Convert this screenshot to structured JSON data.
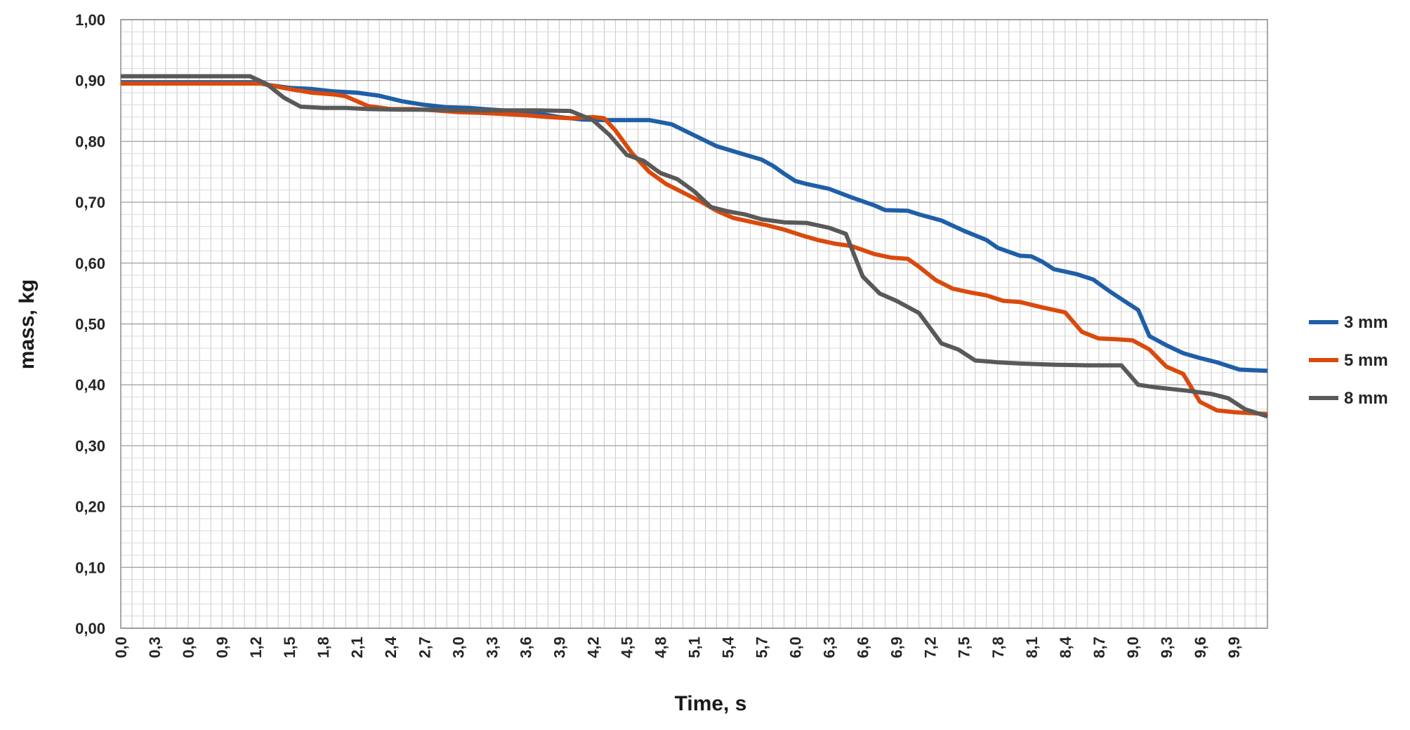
{
  "chart_data": {
    "type": "line",
    "title": "",
    "xlabel": "Time, s",
    "ylabel": "mass, kg",
    "xlim": [
      0,
      10.2
    ],
    "ylim": [
      0,
      1.0
    ],
    "grid": true,
    "legend_position": "right",
    "x_tick_labels": [
      "0,0",
      "0,3",
      "0,6",
      "0,9",
      "1,2",
      "1,5",
      "1,8",
      "2,1",
      "2,4",
      "2,7",
      "3,0",
      "3,3",
      "3,6",
      "3,9",
      "4,2",
      "4,5",
      "4,8",
      "5,1",
      "5,4",
      "5,7",
      "6,0",
      "6,3",
      "6,6",
      "6,9",
      "7,2",
      "7,5",
      "7,8",
      "8,1",
      "8,4",
      "8,7",
      "9,0",
      "9,3",
      "9,6",
      "9,9"
    ],
    "y_tick_labels": [
      "0,00",
      "0,10",
      "0,20",
      "0,30",
      "0,40",
      "0,50",
      "0,60",
      "0,70",
      "0,80",
      "0,90",
      "1,00"
    ],
    "series": [
      {
        "name": "3 mm",
        "color": "#1f5fa8",
        "points": [
          [
            0.0,
            0.897
          ],
          [
            1.2,
            0.897
          ],
          [
            1.3,
            0.893
          ],
          [
            1.5,
            0.888
          ],
          [
            1.7,
            0.886
          ],
          [
            1.9,
            0.882
          ],
          [
            2.1,
            0.88
          ],
          [
            2.3,
            0.875
          ],
          [
            2.5,
            0.866
          ],
          [
            2.7,
            0.86
          ],
          [
            2.9,
            0.856
          ],
          [
            3.1,
            0.855
          ],
          [
            3.3,
            0.852
          ],
          [
            3.5,
            0.85
          ],
          [
            3.7,
            0.846
          ],
          [
            3.9,
            0.84
          ],
          [
            4.1,
            0.836
          ],
          [
            4.3,
            0.835
          ],
          [
            4.5,
            0.835
          ],
          [
            4.7,
            0.835
          ],
          [
            4.9,
            0.828
          ],
          [
            5.1,
            0.81
          ],
          [
            5.3,
            0.792
          ],
          [
            5.5,
            0.781
          ],
          [
            5.7,
            0.77
          ],
          [
            5.8,
            0.76
          ],
          [
            5.9,
            0.747
          ],
          [
            6.0,
            0.735
          ],
          [
            6.1,
            0.73
          ],
          [
            6.3,
            0.722
          ],
          [
            6.5,
            0.708
          ],
          [
            6.7,
            0.695
          ],
          [
            6.8,
            0.687
          ],
          [
            7.0,
            0.686
          ],
          [
            7.1,
            0.68
          ],
          [
            7.3,
            0.67
          ],
          [
            7.5,
            0.653
          ],
          [
            7.7,
            0.638
          ],
          [
            7.8,
            0.625
          ],
          [
            8.0,
            0.612
          ],
          [
            8.1,
            0.611
          ],
          [
            8.2,
            0.602
          ],
          [
            8.3,
            0.59
          ],
          [
            8.5,
            0.582
          ],
          [
            8.65,
            0.573
          ],
          [
            8.8,
            0.553
          ],
          [
            8.95,
            0.535
          ],
          [
            9.05,
            0.523
          ],
          [
            9.15,
            0.48
          ],
          [
            9.3,
            0.465
          ],
          [
            9.45,
            0.452
          ],
          [
            9.6,
            0.444
          ],
          [
            9.75,
            0.437
          ],
          [
            9.95,
            0.425
          ],
          [
            10.2,
            0.423
          ]
        ]
      },
      {
        "name": "5 mm",
        "color": "#d94a0c",
        "points": [
          [
            0.0,
            0.895
          ],
          [
            1.25,
            0.895
          ],
          [
            1.5,
            0.886
          ],
          [
            1.7,
            0.88
          ],
          [
            1.9,
            0.877
          ],
          [
            2.0,
            0.874
          ],
          [
            2.2,
            0.858
          ],
          [
            2.4,
            0.853
          ],
          [
            2.6,
            0.853
          ],
          [
            2.8,
            0.851
          ],
          [
            3.0,
            0.848
          ],
          [
            3.2,
            0.847
          ],
          [
            3.4,
            0.845
          ],
          [
            3.6,
            0.843
          ],
          [
            3.8,
            0.84
          ],
          [
            4.0,
            0.838
          ],
          [
            4.2,
            0.84
          ],
          [
            4.3,
            0.838
          ],
          [
            4.4,
            0.818
          ],
          [
            4.55,
            0.78
          ],
          [
            4.7,
            0.75
          ],
          [
            4.85,
            0.73
          ],
          [
            5.0,
            0.716
          ],
          [
            5.15,
            0.702
          ],
          [
            5.3,
            0.686
          ],
          [
            5.45,
            0.674
          ],
          [
            5.6,
            0.668
          ],
          [
            5.75,
            0.662
          ],
          [
            5.9,
            0.655
          ],
          [
            6.05,
            0.646
          ],
          [
            6.2,
            0.638
          ],
          [
            6.35,
            0.632
          ],
          [
            6.5,
            0.628
          ],
          [
            6.7,
            0.615
          ],
          [
            6.85,
            0.609
          ],
          [
            7.0,
            0.607
          ],
          [
            7.1,
            0.594
          ],
          [
            7.25,
            0.572
          ],
          [
            7.4,
            0.558
          ],
          [
            7.55,
            0.552
          ],
          [
            7.7,
            0.547
          ],
          [
            7.85,
            0.538
          ],
          [
            8.0,
            0.536
          ],
          [
            8.2,
            0.527
          ],
          [
            8.4,
            0.519
          ],
          [
            8.55,
            0.487
          ],
          [
            8.7,
            0.476
          ],
          [
            8.85,
            0.475
          ],
          [
            9.0,
            0.473
          ],
          [
            9.15,
            0.458
          ],
          [
            9.3,
            0.43
          ],
          [
            9.45,
            0.418
          ],
          [
            9.6,
            0.372
          ],
          [
            9.75,
            0.358
          ],
          [
            9.9,
            0.355
          ],
          [
            10.2,
            0.352
          ]
        ]
      },
      {
        "name": "8 mm",
        "color": "#595959",
        "points": [
          [
            0.0,
            0.907
          ],
          [
            1.15,
            0.907
          ],
          [
            1.3,
            0.894
          ],
          [
            1.45,
            0.872
          ],
          [
            1.6,
            0.857
          ],
          [
            1.8,
            0.855
          ],
          [
            2.0,
            0.855
          ],
          [
            2.2,
            0.853
          ],
          [
            2.5,
            0.852
          ],
          [
            2.8,
            0.852
          ],
          [
            3.1,
            0.851
          ],
          [
            3.4,
            0.851
          ],
          [
            3.7,
            0.851
          ],
          [
            4.0,
            0.85
          ],
          [
            4.2,
            0.835
          ],
          [
            4.35,
            0.81
          ],
          [
            4.5,
            0.778
          ],
          [
            4.65,
            0.768
          ],
          [
            4.8,
            0.748
          ],
          [
            4.95,
            0.738
          ],
          [
            5.1,
            0.718
          ],
          [
            5.25,
            0.692
          ],
          [
            5.4,
            0.685
          ],
          [
            5.55,
            0.68
          ],
          [
            5.7,
            0.672
          ],
          [
            5.9,
            0.667
          ],
          [
            6.1,
            0.666
          ],
          [
            6.3,
            0.658
          ],
          [
            6.45,
            0.648
          ],
          [
            6.6,
            0.578
          ],
          [
            6.75,
            0.55
          ],
          [
            6.9,
            0.538
          ],
          [
            7.1,
            0.518
          ],
          [
            7.3,
            0.468
          ],
          [
            7.45,
            0.458
          ],
          [
            7.6,
            0.44
          ],
          [
            7.8,
            0.437
          ],
          [
            8.0,
            0.435
          ],
          [
            8.3,
            0.433
          ],
          [
            8.6,
            0.432
          ],
          [
            8.9,
            0.432
          ],
          [
            9.05,
            0.4
          ],
          [
            9.2,
            0.396
          ],
          [
            9.35,
            0.393
          ],
          [
            9.5,
            0.39
          ],
          [
            9.7,
            0.385
          ],
          [
            9.85,
            0.378
          ],
          [
            10.0,
            0.36
          ],
          [
            10.2,
            0.348
          ]
        ]
      }
    ]
  }
}
